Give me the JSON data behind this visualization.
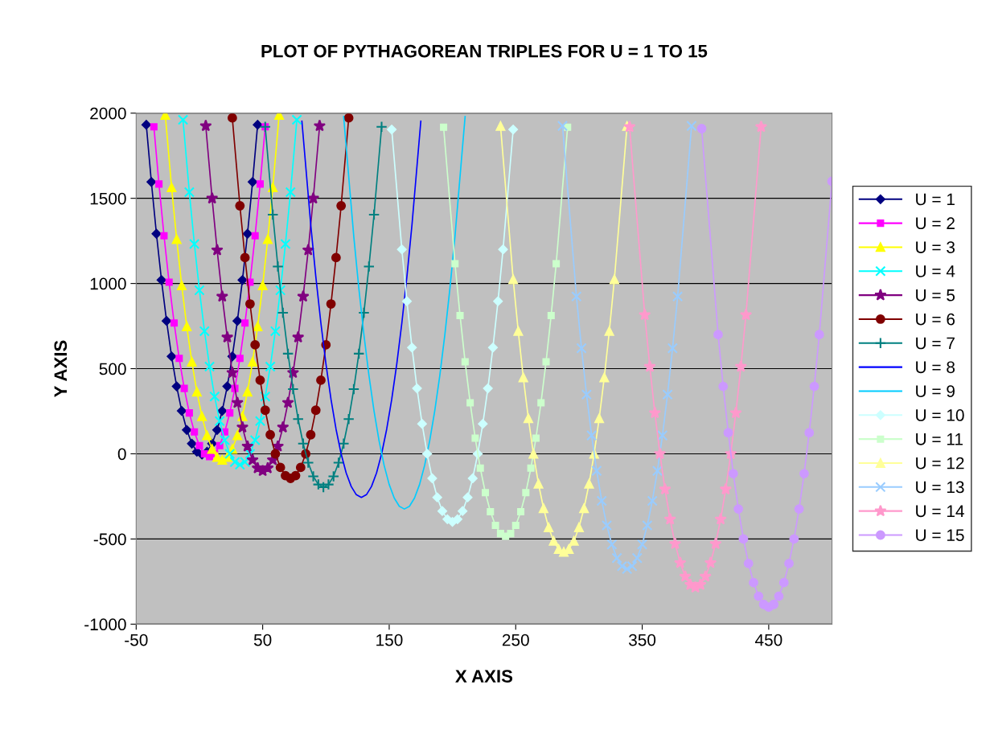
{
  "chart_data": {
    "type": "line",
    "title": "PLOT OF PYTHAGOREAN TRIPLES FOR U = 1 TO 15",
    "xlabel": "X AXIS",
    "ylabel": "Y AXIS",
    "xlim": [
      -50,
      500
    ],
    "xticks": [
      -50,
      50,
      150,
      250,
      350,
      450
    ],
    "ylim": [
      -1000,
      2000
    ],
    "yticks": [
      -1000,
      -500,
      0,
      500,
      1000,
      1500,
      2000
    ],
    "grid": "y",
    "legend": "right",
    "series": [
      {
        "name": "U = 1",
        "color": "#000080",
        "marker": "diamond",
        "x": [
          -42,
          -38,
          -34,
          -30,
          -26,
          -22,
          -18,
          -14,
          -10,
          -6,
          -2,
          2,
          6,
          10,
          14,
          18,
          22,
          26,
          30,
          34,
          38,
          42,
          46
        ],
        "values": [
          1932,
          1596,
          1292,
          1020,
          780,
          572,
          396,
          252,
          140,
          60,
          12,
          -4,
          12,
          60,
          140,
          252,
          396,
          572,
          780,
          1020,
          1292,
          1596,
          1932
        ]
      },
      {
        "name": "U = 2",
        "color": "#ff00ff",
        "marker": "square",
        "x": [
          -36,
          -32,
          -28,
          -24,
          -20,
          -16,
          -12,
          -8,
          -4,
          0,
          4,
          8,
          12,
          16,
          20,
          24,
          28,
          32,
          36,
          40,
          44,
          48,
          52
        ],
        "values": [
          1920,
          1584,
          1280,
          1008,
          768,
          560,
          384,
          240,
          128,
          48,
          0,
          -16,
          0,
          48,
          128,
          240,
          384,
          560,
          768,
          1008,
          1280,
          1584,
          1920
        ]
      },
      {
        "name": "U = 3",
        "color": "#ffff00",
        "marker": "triangle",
        "x": [
          -27,
          -22,
          -18,
          -14,
          -10,
          -6,
          -2,
          2,
          6,
          10,
          14,
          18,
          22,
          26,
          30,
          34,
          38,
          42,
          46,
          50,
          54,
          58,
          63
        ],
        "values": [
          1989,
          1564,
          1260,
          988,
          748,
          540,
          364,
          220,
          108,
          28,
          -20,
          -36,
          -20,
          28,
          108,
          220,
          364,
          540,
          748,
          988,
          1260,
          1564,
          1989
        ]
      },
      {
        "name": "U = 4",
        "color": "#00ffff",
        "marker": "cross",
        "x": [
          -13,
          -8,
          -4,
          0,
          4,
          8,
          12,
          16,
          20,
          24,
          28,
          32,
          36,
          40,
          44,
          48,
          52,
          56,
          60,
          64,
          68,
          72,
          77
        ],
        "values": [
          1961,
          1536,
          1232,
          960,
          720,
          512,
          336,
          192,
          80,
          0,
          -48,
          -64,
          -48,
          0,
          80,
          192,
          336,
          512,
          720,
          960,
          1232,
          1536,
          1961
        ]
      },
      {
        "name": "U = 5",
        "color": "#800080",
        "marker": "star",
        "x": [
          5,
          10,
          14,
          18,
          22,
          26,
          30,
          34,
          38,
          42,
          46,
          50,
          54,
          58,
          62,
          66,
          70,
          74,
          78,
          82,
          86,
          90,
          95
        ],
        "values": [
          1925,
          1500,
          1196,
          924,
          684,
          476,
          300,
          156,
          44,
          -36,
          -84,
          -100,
          -84,
          -36,
          44,
          156,
          300,
          476,
          684,
          924,
          1196,
          1500,
          1925
        ]
      },
      {
        "name": "U = 6",
        "color": "#800000",
        "marker": "circle",
        "x": [
          26,
          32,
          36,
          40,
          44,
          48,
          52,
          56,
          60,
          64,
          68,
          72,
          76,
          80,
          84,
          88,
          92,
          96,
          100,
          104,
          108,
          112,
          118
        ],
        "values": [
          1972,
          1456,
          1152,
          880,
          640,
          432,
          256,
          112,
          0,
          -80,
          -128,
          -144,
          -128,
          -80,
          0,
          112,
          256,
          432,
          640,
          880,
          1152,
          1456,
          1972
        ]
      },
      {
        "name": "U = 7",
        "color": "#008080",
        "marker": "plus",
        "x": [
          52,
          58,
          62,
          66,
          70,
          74,
          78,
          82,
          86,
          90,
          94,
          98,
          102,
          106,
          110,
          114,
          118,
          122,
          126,
          130,
          134,
          138,
          144
        ],
        "values": [
          1920,
          1404,
          1100,
          828,
          588,
          380,
          204,
          60,
          -52,
          -132,
          -180,
          -196,
          -180,
          -132,
          -52,
          60,
          204,
          380,
          588,
          828,
          1100,
          1404,
          1920
        ]
      },
      {
        "name": "U = 8",
        "color": "#0000ff",
        "marker": "none",
        "x": [
          81,
          88,
          92,
          96,
          100,
          104,
          108,
          112,
          116,
          120,
          124,
          128,
          132,
          136,
          140,
          144,
          148,
          152,
          156,
          160,
          164,
          168,
          175
        ],
        "values": [
          1953,
          1344,
          1040,
          768,
          528,
          320,
          144,
          0,
          -112,
          -192,
          -240,
          -256,
          -240,
          -192,
          -112,
          0,
          144,
          320,
          528,
          768,
          1040,
          1344,
          1953
        ]
      },
      {
        "name": "U = 9",
        "color": "#00ccff",
        "marker": "none",
        "x": [
          114,
          122,
          126,
          130,
          134,
          138,
          142,
          146,
          150,
          154,
          158,
          162,
          166,
          170,
          174,
          178,
          182,
          186,
          190,
          194,
          198,
          202,
          210
        ],
        "values": [
          1980,
          1276,
          972,
          700,
          460,
          252,
          76,
          -68,
          -180,
          -260,
          -308,
          -324,
          -308,
          -260,
          -180,
          -68,
          76,
          252,
          460,
          700,
          972,
          1276,
          1980
        ]
      },
      {
        "name": "U = 10",
        "color": "#ccffff",
        "marker": "diamond",
        "x": [
          152,
          160,
          164,
          168,
          172,
          176,
          180,
          184,
          188,
          192,
          196,
          200,
          204,
          208,
          212,
          216,
          220,
          224,
          228,
          232,
          236,
          240,
          248
        ],
        "values": [
          1904,
          1200,
          896,
          624,
          384,
          176,
          0,
          -144,
          -256,
          -336,
          -384,
          -400,
          -384,
          -336,
          -256,
          -144,
          0,
          176,
          384,
          624,
          896,
          1200,
          1904
        ]
      },
      {
        "name": "U = 11",
        "color": "#ccffcc",
        "marker": "square",
        "x": [
          193,
          202,
          206,
          210,
          214,
          218,
          222,
          226,
          230,
          234,
          238,
          242,
          246,
          250,
          254,
          258,
          262,
          266,
          270,
          274,
          278,
          282,
          291
        ],
        "values": [
          1917,
          1116,
          812,
          540,
          300,
          92,
          -84,
          -228,
          -340,
          -420,
          -468,
          -484,
          -468,
          -420,
          -340,
          -228,
          -84,
          92,
          300,
          540,
          812,
          1116,
          1917
        ]
      },
      {
        "name": "U = 12",
        "color": "#ffff99",
        "marker": "triangle",
        "x": [
          238,
          248,
          252,
          256,
          260,
          264,
          268,
          272,
          276,
          280,
          284,
          288,
          292,
          296,
          300,
          304,
          308,
          312,
          316,
          320,
          324,
          328,
          338
        ],
        "values": [
          1924,
          1024,
          720,
          448,
          208,
          0,
          -176,
          -320,
          -432,
          -512,
          -560,
          -576,
          -560,
          -512,
          -432,
          -320,
          -176,
          0,
          208,
          448,
          720,
          1024,
          1924
        ]
      },
      {
        "name": "U = 13",
        "color": "#99ccff",
        "marker": "cross",
        "x": [
          287,
          298,
          302,
          306,
          310,
          314,
          318,
          322,
          326,
          330,
          334,
          338,
          342,
          346,
          350,
          354,
          358,
          362,
          366,
          370,
          374,
          378,
          389
        ],
        "values": [
          1925,
          924,
          620,
          348,
          108,
          -100,
          -276,
          -420,
          -532,
          -612,
          -660,
          -676,
          -660,
          -612,
          -532,
          -420,
          -276,
          -100,
          108,
          348,
          620,
          924,
          1925
        ]
      },
      {
        "name": "U = 14",
        "color": "#ff99cc",
        "marker": "star",
        "x": [
          340,
          352,
          356,
          360,
          364,
          368,
          372,
          376,
          380,
          384,
          388,
          392,
          396,
          400,
          404,
          408,
          412,
          416,
          420,
          424,
          428,
          432,
          444
        ],
        "values": [
          1920,
          816,
          512,
          240,
          0,
          -208,
          -384,
          -528,
          -640,
          -720,
          -768,
          -784,
          -768,
          -720,
          -640,
          -528,
          -384,
          -208,
          0,
          240,
          512,
          816,
          1920
        ]
      },
      {
        "name": "U = 15",
        "color": "#cc99ff",
        "marker": "circle",
        "x": [
          397,
          410,
          414,
          418,
          422,
          426,
          430,
          434,
          438,
          442,
          446,
          450,
          454,
          458,
          462,
          466,
          470,
          474,
          478,
          482,
          486,
          490,
          500
        ],
        "values": [
          1909,
          700,
          396,
          124,
          -116,
          -324,
          -500,
          -644,
          -756,
          -836,
          -884,
          -900,
          -884,
          -836,
          -756,
          -644,
          -500,
          -324,
          -116,
          124,
          396,
          700,
          1600
        ]
      }
    ]
  }
}
